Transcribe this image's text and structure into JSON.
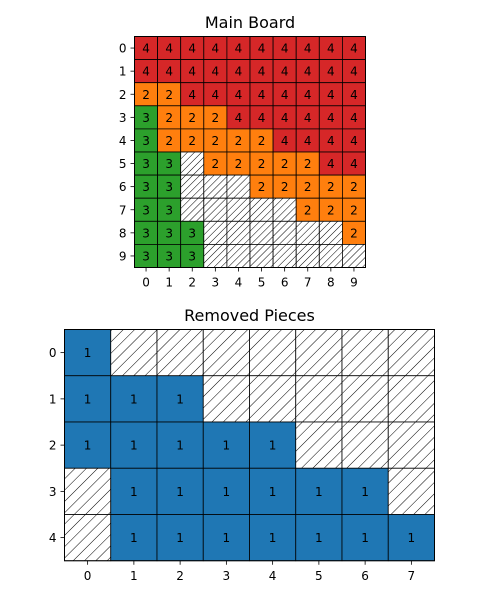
{
  "colors": {
    "4": "#d62728",
    "2": "#ff7f0e",
    "3": "#2ca02c",
    "1": "#1f77b4",
    "empty": "#ffffff",
    "grid": "#000000"
  },
  "chart_data": [
    {
      "type": "heatmap",
      "title": "Main Board",
      "x_ticks": [
        0,
        1,
        2,
        3,
        4,
        5,
        6,
        7,
        8,
        9
      ],
      "y_ticks": [
        0,
        1,
        2,
        3,
        4,
        5,
        6,
        7,
        8,
        9
      ],
      "legend": "none",
      "empty_style": "hatched",
      "grid": [
        [
          4,
          4,
          4,
          4,
          4,
          4,
          4,
          4,
          4,
          4
        ],
        [
          4,
          4,
          4,
          4,
          4,
          4,
          4,
          4,
          4,
          4
        ],
        [
          2,
          2,
          4,
          4,
          4,
          4,
          4,
          4,
          4,
          4
        ],
        [
          3,
          2,
          2,
          2,
          4,
          4,
          4,
          4,
          4,
          4
        ],
        [
          3,
          2,
          2,
          2,
          2,
          2,
          4,
          4,
          4,
          4
        ],
        [
          3,
          3,
          0,
          2,
          2,
          2,
          2,
          2,
          4,
          4
        ],
        [
          3,
          3,
          0,
          0,
          0,
          2,
          2,
          2,
          2,
          2
        ],
        [
          3,
          3,
          0,
          0,
          0,
          0,
          0,
          2,
          2,
          2
        ],
        [
          3,
          3,
          3,
          0,
          0,
          0,
          0,
          0,
          0,
          2
        ],
        [
          3,
          3,
          3,
          0,
          0,
          0,
          0,
          0,
          0,
          0
        ]
      ]
    },
    {
      "type": "heatmap",
      "title": "Removed Pieces",
      "x_ticks": [
        0,
        1,
        2,
        3,
        4,
        5,
        6,
        7
      ],
      "y_ticks": [
        0,
        1,
        2,
        3,
        4
      ],
      "legend": "none",
      "empty_style": "hatched",
      "grid": [
        [
          1,
          0,
          0,
          0,
          0,
          0,
          0,
          0
        ],
        [
          1,
          1,
          1,
          0,
          0,
          0,
          0,
          0
        ],
        [
          1,
          1,
          1,
          1,
          1,
          0,
          0,
          0
        ],
        [
          0,
          1,
          1,
          1,
          1,
          1,
          1,
          0
        ],
        [
          0,
          1,
          1,
          1,
          1,
          1,
          1,
          1
        ]
      ]
    }
  ]
}
